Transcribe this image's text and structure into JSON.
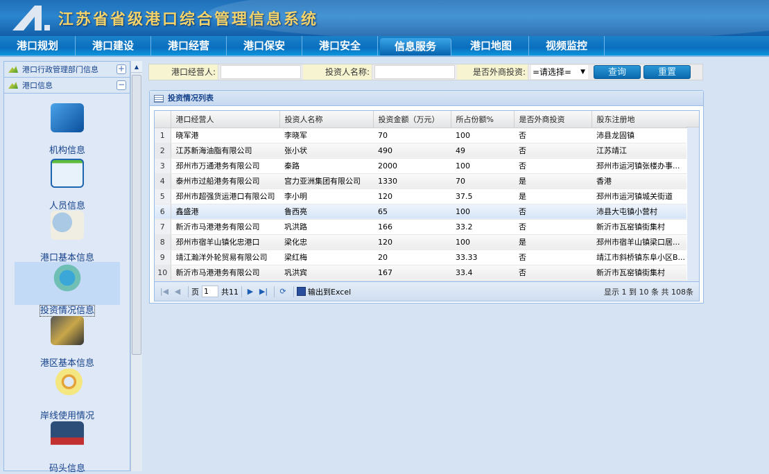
{
  "app": {
    "title": "江苏省省级港口综合管理信息系统"
  },
  "nav": [
    {
      "label": "港口规划"
    },
    {
      "label": "港口建设"
    },
    {
      "label": "港口经营"
    },
    {
      "label": "港口保安"
    },
    {
      "label": "港口安全"
    },
    {
      "label": "信息服务",
      "active": true
    },
    {
      "label": "港口地图"
    },
    {
      "label": "视频监控"
    }
  ],
  "sidebar": {
    "sections": [
      {
        "label": "港口行政管理部门信息",
        "toggle": "+"
      },
      {
        "label": "港口信息",
        "toggle": "−"
      }
    ],
    "modules": [
      {
        "label": "机构信息",
        "icon": "house-icon"
      },
      {
        "label": "人员信息",
        "icon": "person-card-icon"
      },
      {
        "label": "港口基本信息",
        "icon": "magnifier-document-icon"
      },
      {
        "label": "投资情况信息",
        "icon": "investment-icon",
        "selected": true
      },
      {
        "label": "港区基本信息",
        "icon": "device-icon"
      },
      {
        "label": "岸线使用情况",
        "icon": "chart-magnifier-icon"
      },
      {
        "label": "码头信息",
        "icon": "container-icon"
      }
    ]
  },
  "filter": {
    "operator_label": "港口经营人:",
    "operator_value": "",
    "investor_label": "投资人名称:",
    "investor_value": "",
    "foreign_label": "是否外商投资:",
    "foreign_selected": "=请选择=",
    "search_button": "查询",
    "reset_button": "重置"
  },
  "grid": {
    "title": "投资情况列表",
    "columns": [
      "港口经营人",
      "投资人名称",
      "投资金额（万元）",
      "所占份额%",
      "是否外商投资",
      "股东注册地"
    ],
    "rows": [
      [
        "1",
        "晓军港",
        "李晓军",
        "70",
        "100",
        "否",
        "沛县龙固镇"
      ],
      [
        "2",
        "江苏新海油脂有限公司",
        "张小状",
        "490",
        "49",
        "否",
        "江苏靖江"
      ],
      [
        "3",
        "邳州市万通港务有限公司",
        "秦路",
        "2000",
        "100",
        "否",
        "邳州市运河镇张楼办事..."
      ],
      [
        "4",
        "泰州市过船港务有限公司",
        "宫力亚洲集团有限公司",
        "1330",
        "70",
        "是",
        "香港"
      ],
      [
        "5",
        "邳州市超强货运港口有限公司",
        "李小明",
        "120",
        "37.5",
        "是",
        "邳州市运河镇城关街道"
      ],
      [
        "6",
        "鑫盛港",
        "鲁西亮",
        "65",
        "100",
        "否",
        "沛县大屯镇小营村"
      ],
      [
        "7",
        "新沂市马港港务有限公司",
        "巩洪路",
        "166",
        "33.2",
        "否",
        "新沂市瓦窑镇街集村"
      ],
      [
        "8",
        "邳州市宿羊山镇化忠港口",
        "梁化忠",
        "120",
        "100",
        "是",
        "邳州市宿羊山镇梁口居..."
      ],
      [
        "9",
        "靖江瀚洋外轮贸易有限公司",
        "梁红梅",
        "20",
        "33.33",
        "否",
        "靖江市斜桥镇东阜小区B..."
      ],
      [
        "10",
        "新沂市马港港务有限公司",
        "巩洪宾",
        "167",
        "33.4",
        "否",
        "新沂市瓦窑镇街集村"
      ]
    ],
    "selected_row": 6,
    "pager": {
      "page_label": "页",
      "page_value": "1",
      "total_pages": "共11",
      "export_label": "输出到Excel",
      "info": "显示 1 到 10 条 共 108条"
    }
  },
  "colors": {
    "accent": "#0a6fbf",
    "title_gold": "#f3d36a",
    "panel_border": "#99bbe8"
  }
}
